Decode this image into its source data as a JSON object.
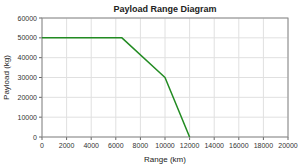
{
  "chart_data": {
    "type": "line",
    "title": "Payload Range Diagram",
    "x_label": "Range (km)",
    "y_label": "Payload (kg)",
    "x": [
      0,
      6500,
      10000,
      12000
    ],
    "values": [
      50000,
      50000,
      30000,
      0
    ],
    "color": "#228B22",
    "xlim": [
      0,
      20000
    ],
    "ylim": [
      0,
      60000
    ],
    "xticks": [
      0,
      2000,
      4000,
      6000,
      8000,
      10000,
      12000,
      14000,
      16000,
      18000,
      20000
    ],
    "yticks": [
      0,
      10000,
      20000,
      30000,
      40000,
      50000,
      60000
    ],
    "grid": true
  }
}
